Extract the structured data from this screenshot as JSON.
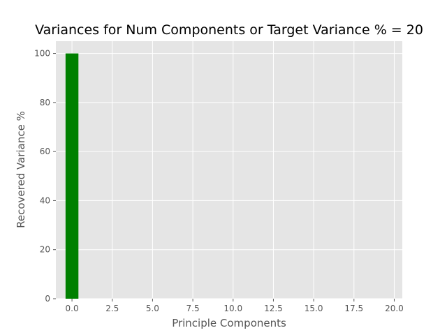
{
  "chart_data": {
    "type": "bar",
    "title": "Variances for Num Components or Target Variance % = 20",
    "xlabel": "Principle Components",
    "ylabel": "Recovered Variance %",
    "x": [
      0
    ],
    "values": [
      100
    ],
    "xlim": [
      -1.0,
      20.5
    ],
    "ylim": [
      0,
      105
    ],
    "xticks": [
      "0.0",
      "2.5",
      "5.0",
      "7.5",
      "10.0",
      "12.5",
      "15.0",
      "17.5",
      "20.0"
    ],
    "xtick_values": [
      0,
      2.5,
      5,
      7.5,
      10,
      12.5,
      15,
      17.5,
      20
    ],
    "yticks": [
      "0",
      "20",
      "40",
      "60",
      "80",
      "100"
    ],
    "ytick_values": [
      0,
      20,
      40,
      60,
      80,
      100
    ],
    "bar_width": 0.8,
    "grid": true,
    "colors": {
      "bar": "#008000",
      "plot_background": "#e5e5e5",
      "grid": "#ffffff"
    }
  }
}
